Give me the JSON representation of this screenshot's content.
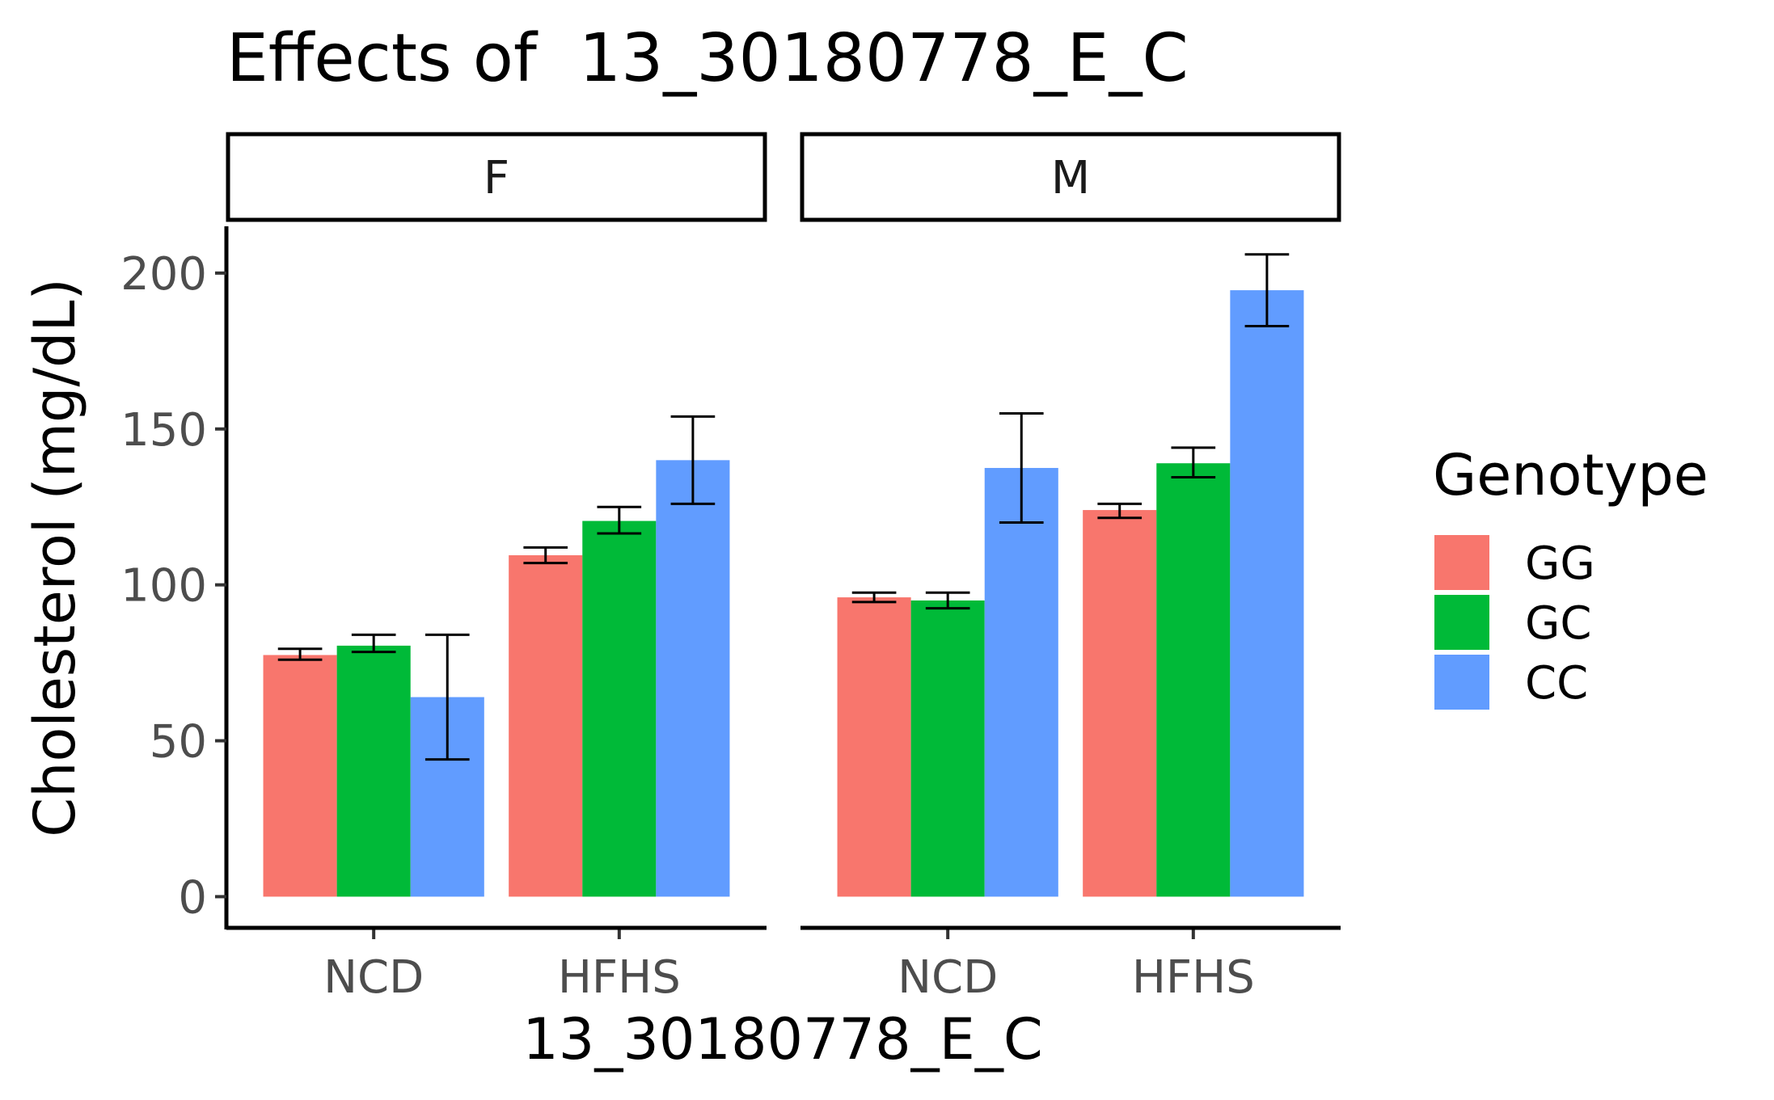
{
  "chart_data": {
    "type": "bar",
    "title": "Effects of  13_30180778_E_C",
    "xlabel": "13_30180778_E_C",
    "ylabel": "Cholesterol (mg/dL)",
    "ylim": [
      -10,
      215
    ],
    "yticks": [
      0,
      50,
      100,
      150,
      200
    ],
    "categories": [
      "NCD",
      "HFHS"
    ],
    "legend": {
      "title": "Genotype",
      "position": "right"
    },
    "grid": false,
    "error_bars": true,
    "panels": [
      {
        "label": "F",
        "series": [
          {
            "name": "GG",
            "color": "#F8766D",
            "values": [
              77.5,
              109.5
            ],
            "err_low": [
              76,
              107
            ],
            "err_high": [
              79.5,
              112
            ]
          },
          {
            "name": "GC",
            "color": "#00BA38",
            "values": [
              80.5,
              120.5
            ],
            "err_low": [
              78.5,
              116.5
            ],
            "err_high": [
              84,
              125
            ]
          },
          {
            "name": "CC",
            "color": "#619CFF",
            "values": [
              64,
              140
            ],
            "err_low": [
              44,
              126
            ],
            "err_high": [
              84,
              154
            ]
          }
        ]
      },
      {
        "label": "M",
        "series": [
          {
            "name": "GG",
            "color": "#F8766D",
            "values": [
              96,
              124
            ],
            "err_low": [
              94.5,
              121.5
            ],
            "err_high": [
              97.5,
              126
            ]
          },
          {
            "name": "GC",
            "color": "#00BA38",
            "values": [
              95,
              139
            ],
            "err_low": [
              92.5,
              134.5
            ],
            "err_high": [
              97.5,
              144
            ]
          },
          {
            "name": "CC",
            "color": "#619CFF",
            "values": [
              137.5,
              194.5
            ],
            "err_low": [
              120,
              183
            ],
            "err_high": [
              155,
              206
            ]
          }
        ]
      }
    ]
  }
}
